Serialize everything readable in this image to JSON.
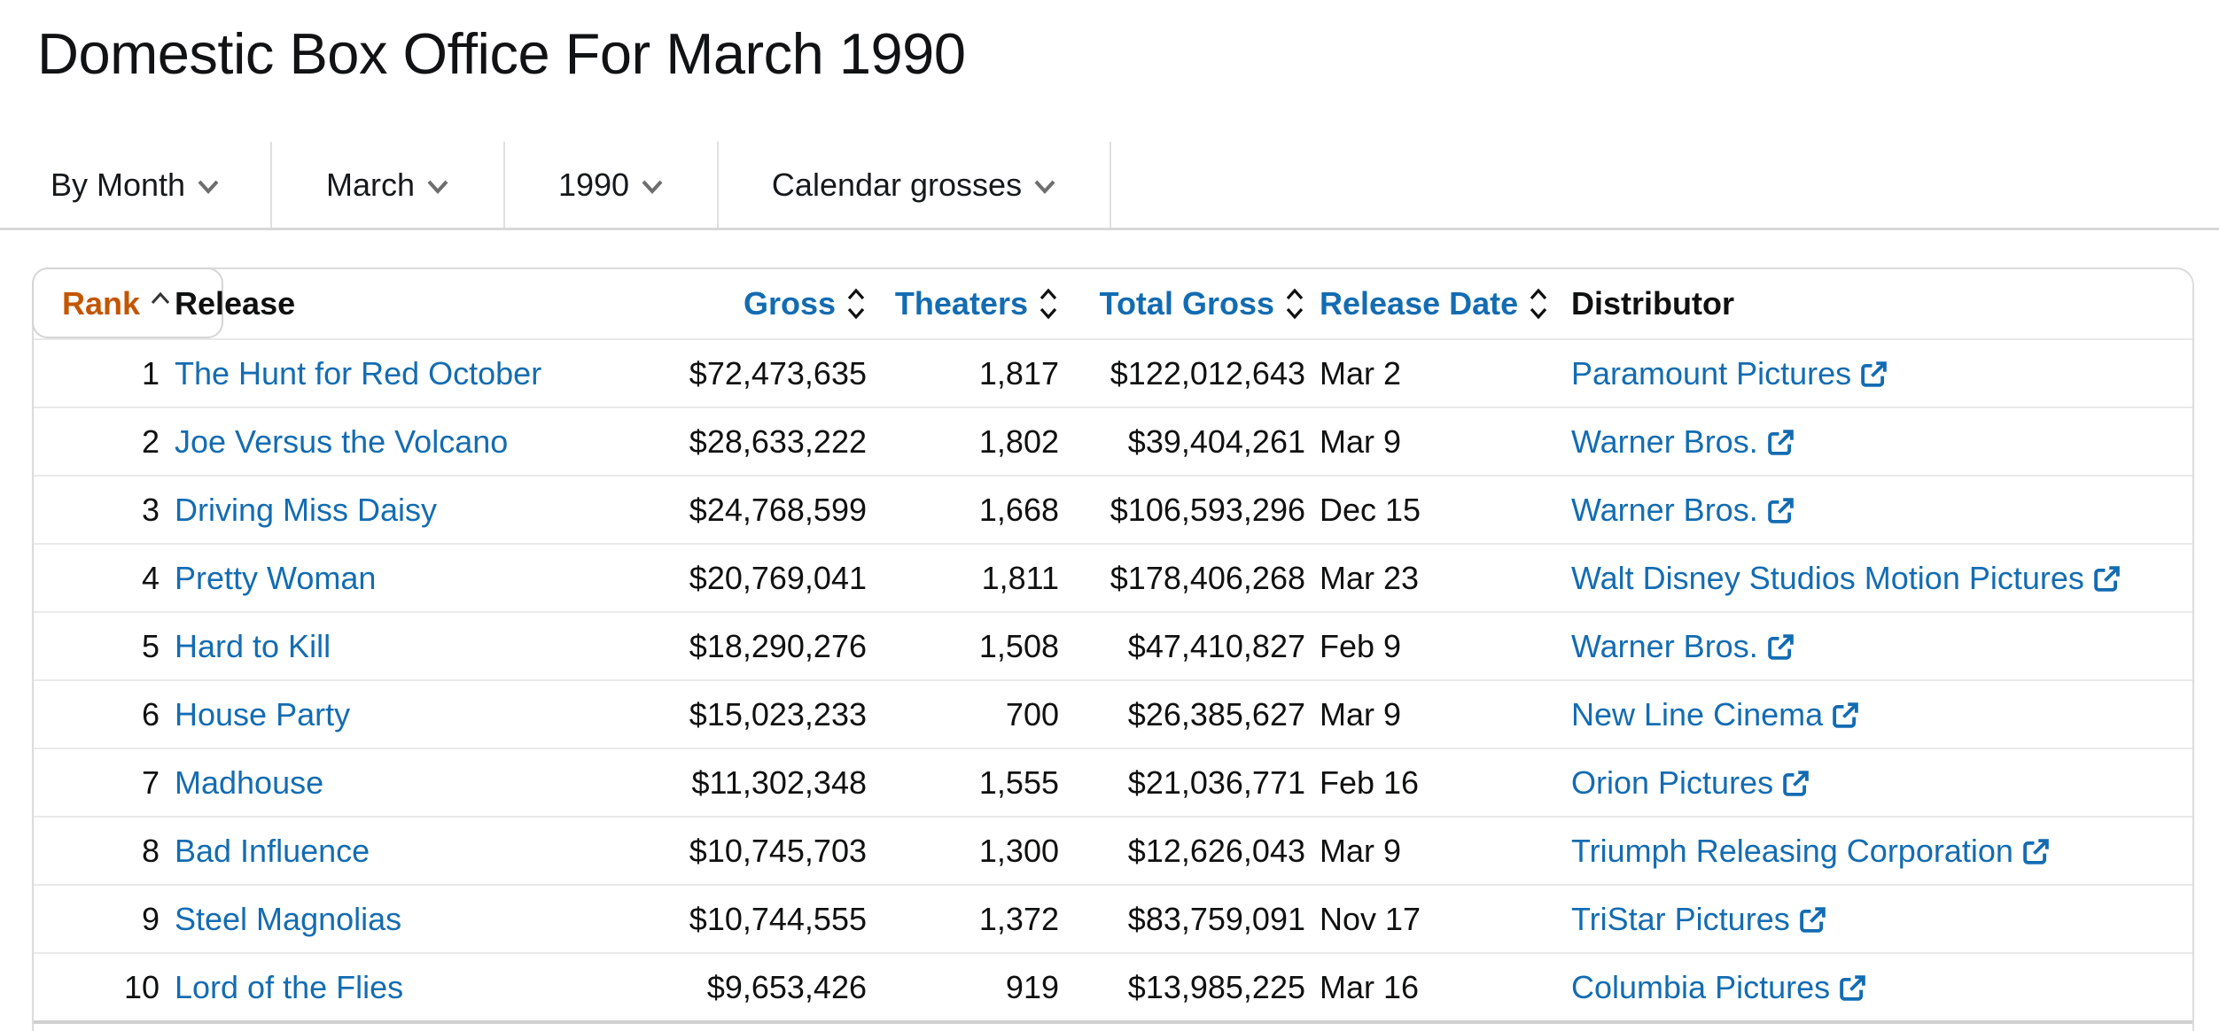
{
  "page": {
    "title": "Domestic Box Office For March 1990"
  },
  "colors": {
    "link_blue": "#136CB2",
    "sorted_orange": "#C45500",
    "text": "#0F1111",
    "row_border": "#E9E9E9"
  },
  "filters": [
    {
      "id": "by-month-dropdown",
      "label": "By Month"
    },
    {
      "id": "month-dropdown",
      "label": "March"
    },
    {
      "id": "year-dropdown",
      "label": "1990"
    },
    {
      "id": "gross-type-dropdown",
      "label": "Calendar grosses"
    }
  ],
  "table": {
    "columns": [
      {
        "id": "rank",
        "label": "Rank",
        "sortable": true,
        "sorted": "ascending"
      },
      {
        "id": "release",
        "label": "Release",
        "sortable": false,
        "sorted": "none"
      },
      {
        "id": "gross",
        "label": "Gross",
        "sortable": true,
        "sorted": "none"
      },
      {
        "id": "theaters",
        "label": "Theaters",
        "sortable": true,
        "sorted": "none"
      },
      {
        "id": "total-gross",
        "label": "Total Gross",
        "sortable": true,
        "sorted": "none"
      },
      {
        "id": "release-date",
        "label": "Release Date",
        "sortable": true,
        "sorted": "none"
      },
      {
        "id": "distributor",
        "label": "Distributor",
        "sortable": false,
        "sorted": "none"
      }
    ],
    "rows": [
      {
        "rank": "1",
        "release": "The Hunt for Red October",
        "gross": "$72,473,635",
        "theaters": "1,817",
        "total_gross": "$122,012,643",
        "release_date": "Mar 2",
        "distributor": "Paramount Pictures"
      },
      {
        "rank": "2",
        "release": "Joe Versus the Volcano",
        "gross": "$28,633,222",
        "theaters": "1,802",
        "total_gross": "$39,404,261",
        "release_date": "Mar 9",
        "distributor": "Warner Bros."
      },
      {
        "rank": "3",
        "release": "Driving Miss Daisy",
        "gross": "$24,768,599",
        "theaters": "1,668",
        "total_gross": "$106,593,296",
        "release_date": "Dec 15",
        "distributor": "Warner Bros."
      },
      {
        "rank": "4",
        "release": "Pretty Woman",
        "gross": "$20,769,041",
        "theaters": "1,811",
        "total_gross": "$178,406,268",
        "release_date": "Mar 23",
        "distributor": "Walt Disney Studios Motion Pictures"
      },
      {
        "rank": "5",
        "release": "Hard to Kill",
        "gross": "$18,290,276",
        "theaters": "1,508",
        "total_gross": "$47,410,827",
        "release_date": "Feb 9",
        "distributor": "Warner Bros."
      },
      {
        "rank": "6",
        "release": "House Party",
        "gross": "$15,023,233",
        "theaters": "700",
        "total_gross": "$26,385,627",
        "release_date": "Mar 9",
        "distributor": "New Line Cinema"
      },
      {
        "rank": "7",
        "release": "Madhouse",
        "gross": "$11,302,348",
        "theaters": "1,555",
        "total_gross": "$21,036,771",
        "release_date": "Feb 16",
        "distributor": "Orion Pictures"
      },
      {
        "rank": "8",
        "release": "Bad Influence",
        "gross": "$10,745,703",
        "theaters": "1,300",
        "total_gross": "$12,626,043",
        "release_date": "Mar 9",
        "distributor": "Triumph Releasing Corporation"
      },
      {
        "rank": "9",
        "release": "Steel Magnolias",
        "gross": "$10,744,555",
        "theaters": "1,372",
        "total_gross": "$83,759,091",
        "release_date": "Nov 17",
        "distributor": "TriStar Pictures"
      },
      {
        "rank": "10",
        "release": "Lord of the Flies",
        "gross": "$9,653,426",
        "theaters": "919",
        "total_gross": "$13,985,225",
        "release_date": "Mar 16",
        "distributor": "Columbia Pictures"
      }
    ]
  }
}
